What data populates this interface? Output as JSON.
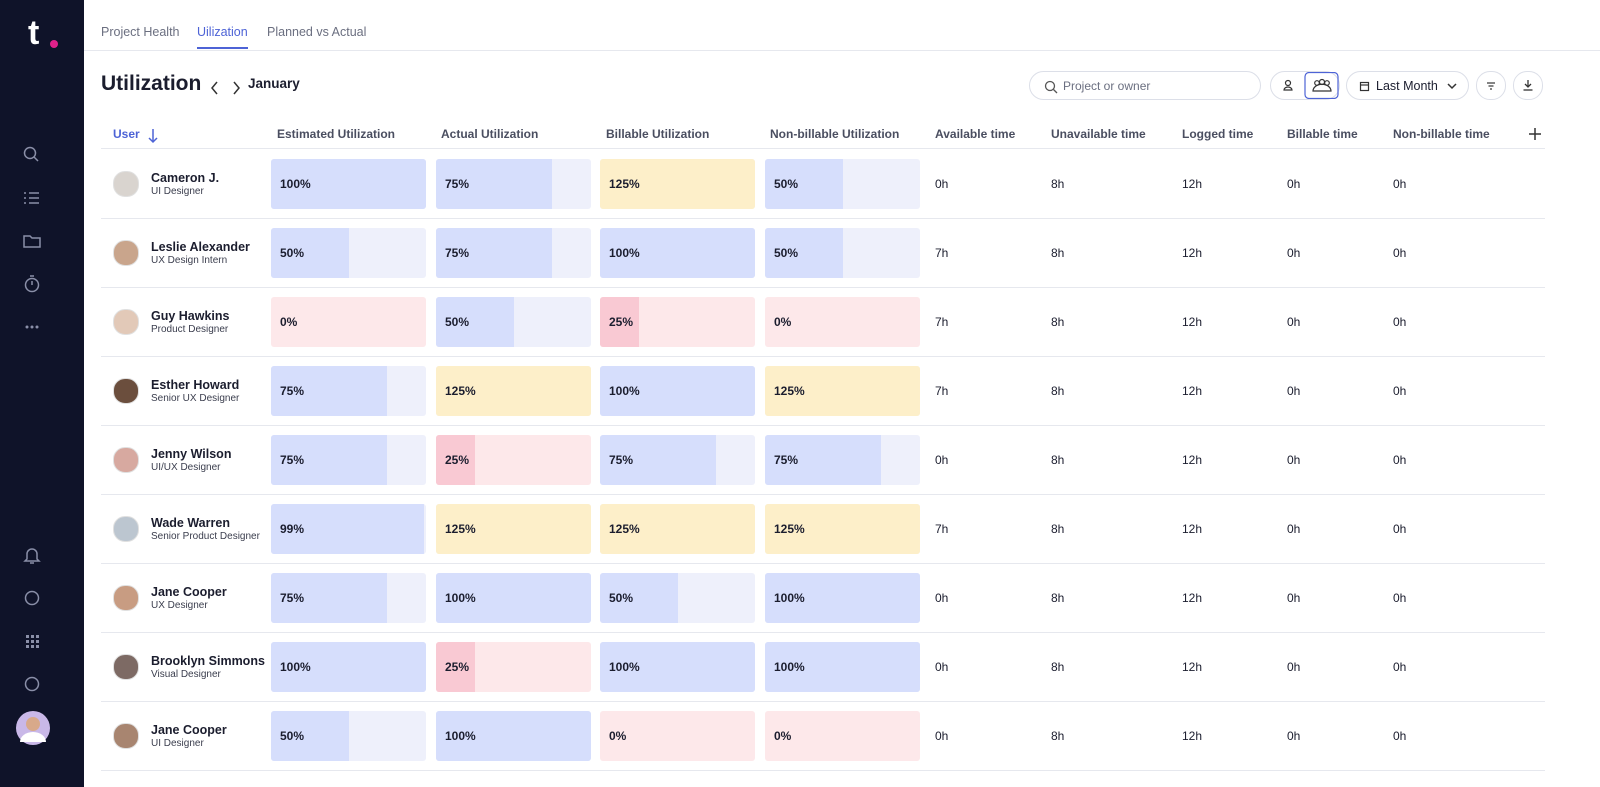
{
  "logo": "t",
  "tabs": [
    "Project Health",
    "Uilization",
    "Planned vs Actual"
  ],
  "header": {
    "title": "Utilization",
    "month": "January",
    "search_placeholder": "Project or owner",
    "period": "Last Month"
  },
  "table": {
    "columns": [
      "User",
      "Estimated Utilization",
      "Actual Utilization",
      "Billable Utilization",
      "Non-billable Utilization",
      "Available time",
      "Unavailable time",
      "Logged time",
      "Billable time",
      "Non-billable time"
    ],
    "rows": [
      {
        "name": "Cameron J.",
        "role": "UI Designer",
        "cells": [
          {
            "value": 100,
            "label": "100%"
          },
          {
            "value": 75,
            "label": "75%"
          },
          {
            "value": 125,
            "label": "125%"
          },
          {
            "value": 50,
            "label": "50%"
          }
        ],
        "times": [
          "0h",
          "8h",
          "12h",
          "0h",
          "0h"
        ]
      },
      {
        "name": "Leslie Alexander",
        "role": "UX Design Intern",
        "cells": [
          {
            "value": 50,
            "label": "50%"
          },
          {
            "value": 75,
            "label": "75%"
          },
          {
            "value": 100,
            "label": "100%"
          },
          {
            "value": 50,
            "label": "50%"
          }
        ],
        "times": [
          "7h",
          "8h",
          "12h",
          "0h",
          "0h"
        ]
      },
      {
        "name": "Guy Hawkins",
        "role": "Product Designer",
        "cells": [
          {
            "value": 0,
            "label": "0%"
          },
          {
            "value": 50,
            "label": "50%"
          },
          {
            "value": 25,
            "label": "25%"
          },
          {
            "value": 0,
            "label": "0%"
          }
        ],
        "times": [
          "7h",
          "8h",
          "12h",
          "0h",
          "0h"
        ]
      },
      {
        "name": "Esther Howard",
        "role": "Senior UX Designer",
        "cells": [
          {
            "value": 75,
            "label": "75%"
          },
          {
            "value": 125,
            "label": "125%"
          },
          {
            "value": 100,
            "label": "100%"
          },
          {
            "value": 125,
            "label": "125%"
          }
        ],
        "times": [
          "7h",
          "8h",
          "12h",
          "0h",
          "0h"
        ]
      },
      {
        "name": "Jenny Wilson",
        "role": "UI/UX Designer",
        "cells": [
          {
            "value": 75,
            "label": "75%"
          },
          {
            "value": 25,
            "label": "25%"
          },
          {
            "value": 75,
            "label": "75%"
          },
          {
            "value": 75,
            "label": "75%"
          }
        ],
        "times": [
          "0h",
          "8h",
          "12h",
          "0h",
          "0h"
        ]
      },
      {
        "name": "Wade Warren",
        "role": "Senior Product Designer",
        "cells": [
          {
            "value": 99,
            "label": "99%"
          },
          {
            "value": 125,
            "label": "125%"
          },
          {
            "value": 125,
            "label": "125%"
          },
          {
            "value": 125,
            "label": "125%"
          }
        ],
        "times": [
          "7h",
          "8h",
          "12h",
          "0h",
          "0h"
        ]
      },
      {
        "name": "Jane Cooper",
        "role": "UX Designer",
        "cells": [
          {
            "value": 75,
            "label": "75%"
          },
          {
            "value": 100,
            "label": "100%"
          },
          {
            "value": 50,
            "label": "50%"
          },
          {
            "value": 100,
            "label": "100%"
          }
        ],
        "times": [
          "0h",
          "8h",
          "12h",
          "0h",
          "0h"
        ]
      },
      {
        "name": "Brooklyn Simmons",
        "role": "Visual Designer",
        "cells": [
          {
            "value": 100,
            "label": "100%"
          },
          {
            "value": 25,
            "label": "25%"
          },
          {
            "value": 100,
            "label": "100%"
          },
          {
            "value": 100,
            "label": "100%"
          }
        ],
        "times": [
          "0h",
          "8h",
          "12h",
          "0h",
          "0h"
        ]
      },
      {
        "name": "Jane Cooper",
        "role": "UI Designer",
        "cells": [
          {
            "value": 50,
            "label": "50%"
          },
          {
            "value": 100,
            "label": "100%"
          },
          {
            "value": 0,
            "label": "0%"
          },
          {
            "value": 0,
            "label": "0%"
          }
        ],
        "times": [
          "0h",
          "8h",
          "12h",
          "0h",
          "0h"
        ]
      }
    ]
  }
}
